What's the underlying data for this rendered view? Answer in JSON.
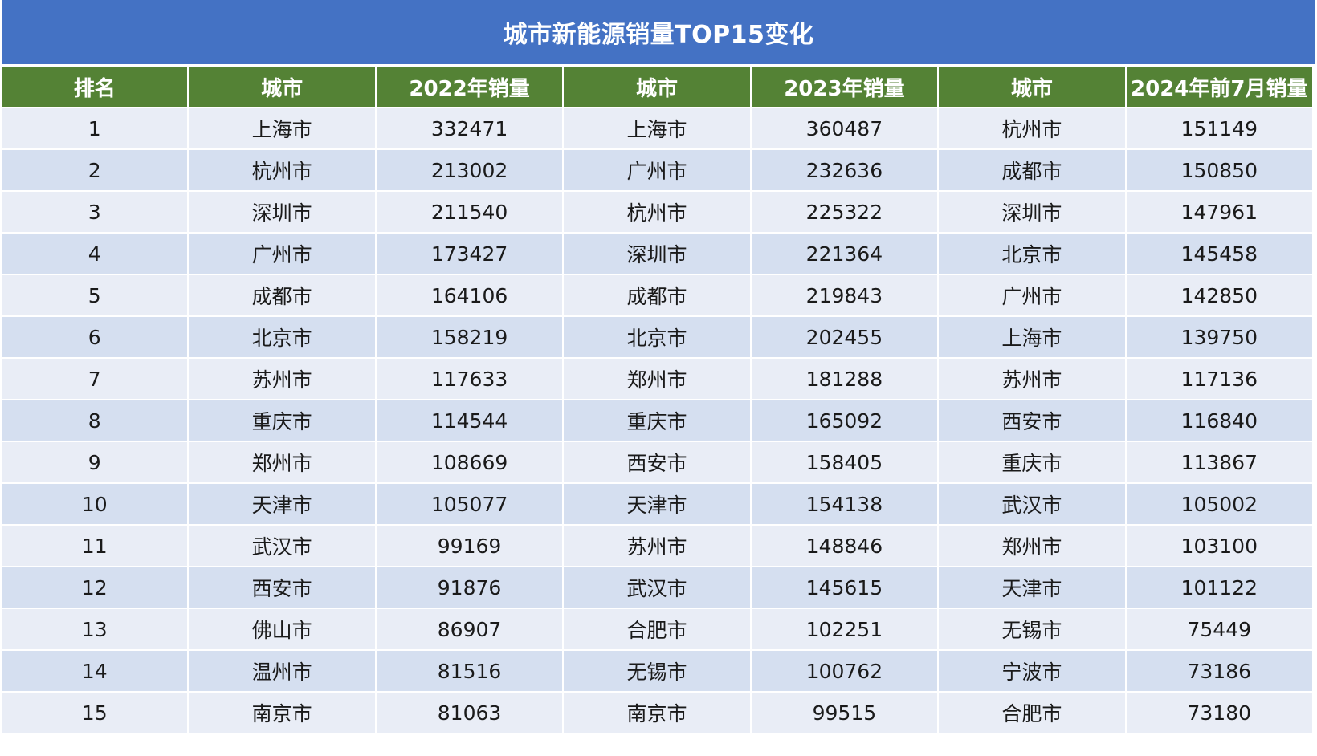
{
  "title": "城市新能源销量TOP15变化",
  "headers": [
    "排名",
    "城市",
    "2022年销量",
    "城市",
    "2023年销量",
    "城市",
    "2024年前7月销量"
  ],
  "rows": [
    [
      "1",
      "上海市",
      "332471",
      "上海市",
      "360487",
      "杭州市",
      "151149"
    ],
    [
      "2",
      "杭州市",
      "213002",
      "广州市",
      "232636",
      "成都市",
      "150850"
    ],
    [
      "3",
      "深圳市",
      "211540",
      "杭州市",
      "225322",
      "深圳市",
      "147961"
    ],
    [
      "4",
      "广州市",
      "173427",
      "深圳市",
      "221364",
      "北京市",
      "145458"
    ],
    [
      "5",
      "成都市",
      "164106",
      "成都市",
      "219843",
      "广州市",
      "142850"
    ],
    [
      "6",
      "北京市",
      "158219",
      "北京市",
      "202455",
      "上海市",
      "139750"
    ],
    [
      "7",
      "苏州市",
      "117633",
      "郑州市",
      "181288",
      "苏州市",
      "117136"
    ],
    [
      "8",
      "重庆市",
      "114544",
      "重庆市",
      "165092",
      "西安市",
      "116840"
    ],
    [
      "9",
      "郑州市",
      "108669",
      "西安市",
      "158405",
      "重庆市",
      "113867"
    ],
    [
      "10",
      "天津市",
      "105077",
      "天津市",
      "154138",
      "武汉市",
      "105002"
    ],
    [
      "11",
      "武汉市",
      "99169",
      "苏州市",
      "148846",
      "郑州市",
      "103100"
    ],
    [
      "12",
      "西安市",
      "91876",
      "武汉市",
      "145615",
      "天津市",
      "101122"
    ],
    [
      "13",
      "佛山市",
      "86907",
      "合肥市",
      "102251",
      "无锡市",
      "75449"
    ],
    [
      "14",
      "温州市",
      "81516",
      "无锡市",
      "100762",
      "宁波市",
      "73186"
    ],
    [
      "15",
      "南京市",
      "81063",
      "南京市",
      "99515",
      "合肥市",
      "73180"
    ]
  ],
  "colors": {
    "title_bg": "#4472c4",
    "header_bg": "#548235",
    "row_light": "#e9edf6",
    "row_dark": "#d5dff0"
  }
}
